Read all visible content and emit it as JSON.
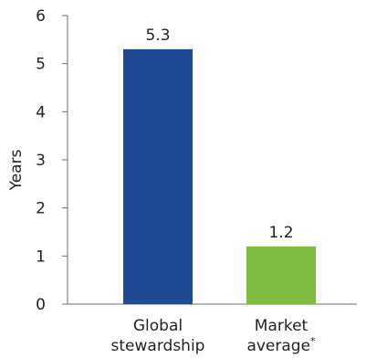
{
  "chart_data": {
    "type": "bar",
    "title": "",
    "xlabel": "",
    "ylabel": "Years",
    "ylim": [
      0,
      6
    ],
    "yticks": [
      "0",
      "1",
      "2",
      "3",
      "4",
      "5",
      "6"
    ],
    "grid": false,
    "legend": "none",
    "categories": [
      {
        "line1": "Global",
        "line2": "stewardship",
        "sup": ""
      },
      {
        "line1": "Market",
        "line2": "average",
        "sup": "*"
      }
    ],
    "values": [
      5.3,
      1.2
    ],
    "value_labels": [
      "5.3",
      "1.2"
    ],
    "colors": [
      "#1e4a94",
      "#7cbc3f"
    ]
  }
}
